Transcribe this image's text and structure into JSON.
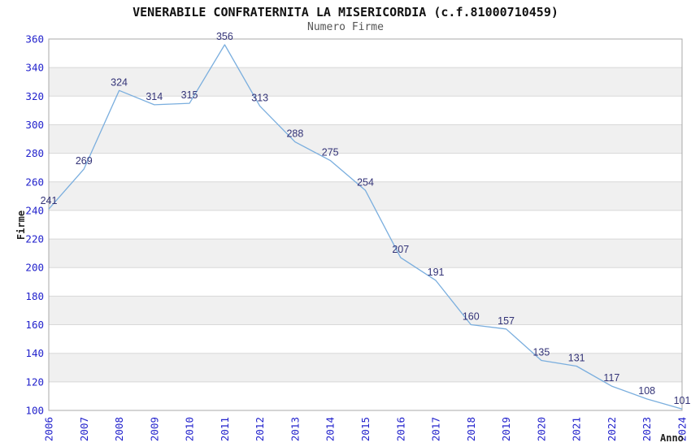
{
  "header": {
    "title": "VENERABILE CONFRATERNITA LA MISERICORDIA (c.f.81000710459)",
    "subtitle": "Numero Firme"
  },
  "chart_data": {
    "type": "line",
    "title": "VENERABILE CONFRATERNITA LA MISERICORDIA (c.f.81000710459)",
    "subtitle": "Numero Firme",
    "xlabel": "Anno",
    "ylabel": "Firme",
    "categories": [
      "2006",
      "2007",
      "2008",
      "2009",
      "2010",
      "2011",
      "2012",
      "2013",
      "2014",
      "2015",
      "2016",
      "2017",
      "2018",
      "2019",
      "2020",
      "2021",
      "2022",
      "2023",
      "2024"
    ],
    "values": [
      241,
      269,
      324,
      314,
      315,
      356,
      313,
      288,
      275,
      254,
      207,
      191,
      160,
      157,
      135,
      131,
      117,
      108,
      101
    ],
    "ylim": [
      100,
      360
    ],
    "ytick_step": 20,
    "yticks": [
      100,
      120,
      140,
      160,
      180,
      200,
      220,
      240,
      260,
      280,
      300,
      320,
      340,
      360
    ],
    "grid": "horizontal-with-alternating-bands",
    "legend": "none",
    "markers": "none",
    "data_labels_shown": true,
    "colors": {
      "line": "#7aaede",
      "tick_label": "#2222cc",
      "data_label": "#333377",
      "band_gray": "#f0f0f0",
      "gridline": "#d8d8d8",
      "plot_border": "#a8a8a8",
      "title": "#111111",
      "subtitle": "#555555",
      "axis_title": "#222222",
      "background": "#ffffff"
    }
  }
}
